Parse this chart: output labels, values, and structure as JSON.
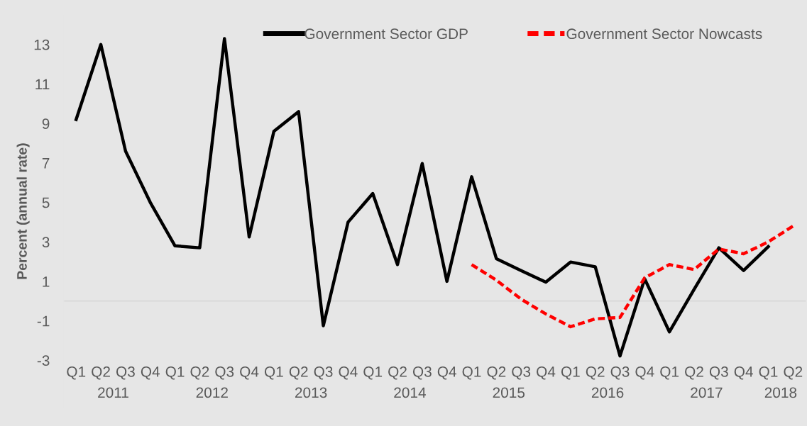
{
  "chart_data": {
    "type": "line",
    "ylabel": "Percent (annual rate)",
    "categories": [
      "Q1",
      "Q2",
      "Q3",
      "Q4",
      "Q1",
      "Q2",
      "Q3",
      "Q4",
      "Q1",
      "Q2",
      "Q3",
      "Q4",
      "Q1",
      "Q2",
      "Q3",
      "Q4",
      "Q1",
      "Q2",
      "Q3",
      "Q4",
      "Q1",
      "Q2",
      "Q3",
      "Q4",
      "Q1",
      "Q2",
      "Q3",
      "Q4",
      "Q1",
      "Q2"
    ],
    "annotations": [
      "2011",
      "2012",
      "2013",
      "2014",
      "2015",
      "2016",
      "2017",
      "2018"
    ],
    "series": [
      {
        "name": "Government Sector GDP",
        "color": "#000000",
        "line_style": "solid",
        "values": [
          9.2,
          13.0,
          7.6,
          5.0,
          2.8,
          2.7,
          13.3,
          3.25,
          8.6,
          9.6,
          -1.25,
          4.0,
          5.45,
          1.85,
          6.97,
          1.0,
          6.3,
          2.15,
          1.55,
          0.96,
          1.98,
          1.74,
          -2.78,
          1.13,
          -1.56,
          0.6,
          2.7,
          1.55,
          2.76,
          null
        ]
      },
      {
        "name": "Government Sector Nowcasts",
        "color": "#ff0000",
        "line_style": "dashed",
        "values": [
          null,
          null,
          null,
          null,
          null,
          null,
          null,
          null,
          null,
          null,
          null,
          null,
          null,
          null,
          null,
          null,
          1.85,
          1.06,
          0.1,
          -0.65,
          -1.3,
          -0.9,
          -0.83,
          1.18,
          1.85,
          1.6,
          2.64,
          2.4,
          3.0,
          3.8
        ]
      }
    ],
    "ylim": [
      -5.4,
      14.5
    ],
    "yticks": [
      -3,
      -1,
      1,
      3,
      5,
      7,
      9,
      11,
      13
    ],
    "grid": false,
    "legend": "top right",
    "marker": "none"
  }
}
